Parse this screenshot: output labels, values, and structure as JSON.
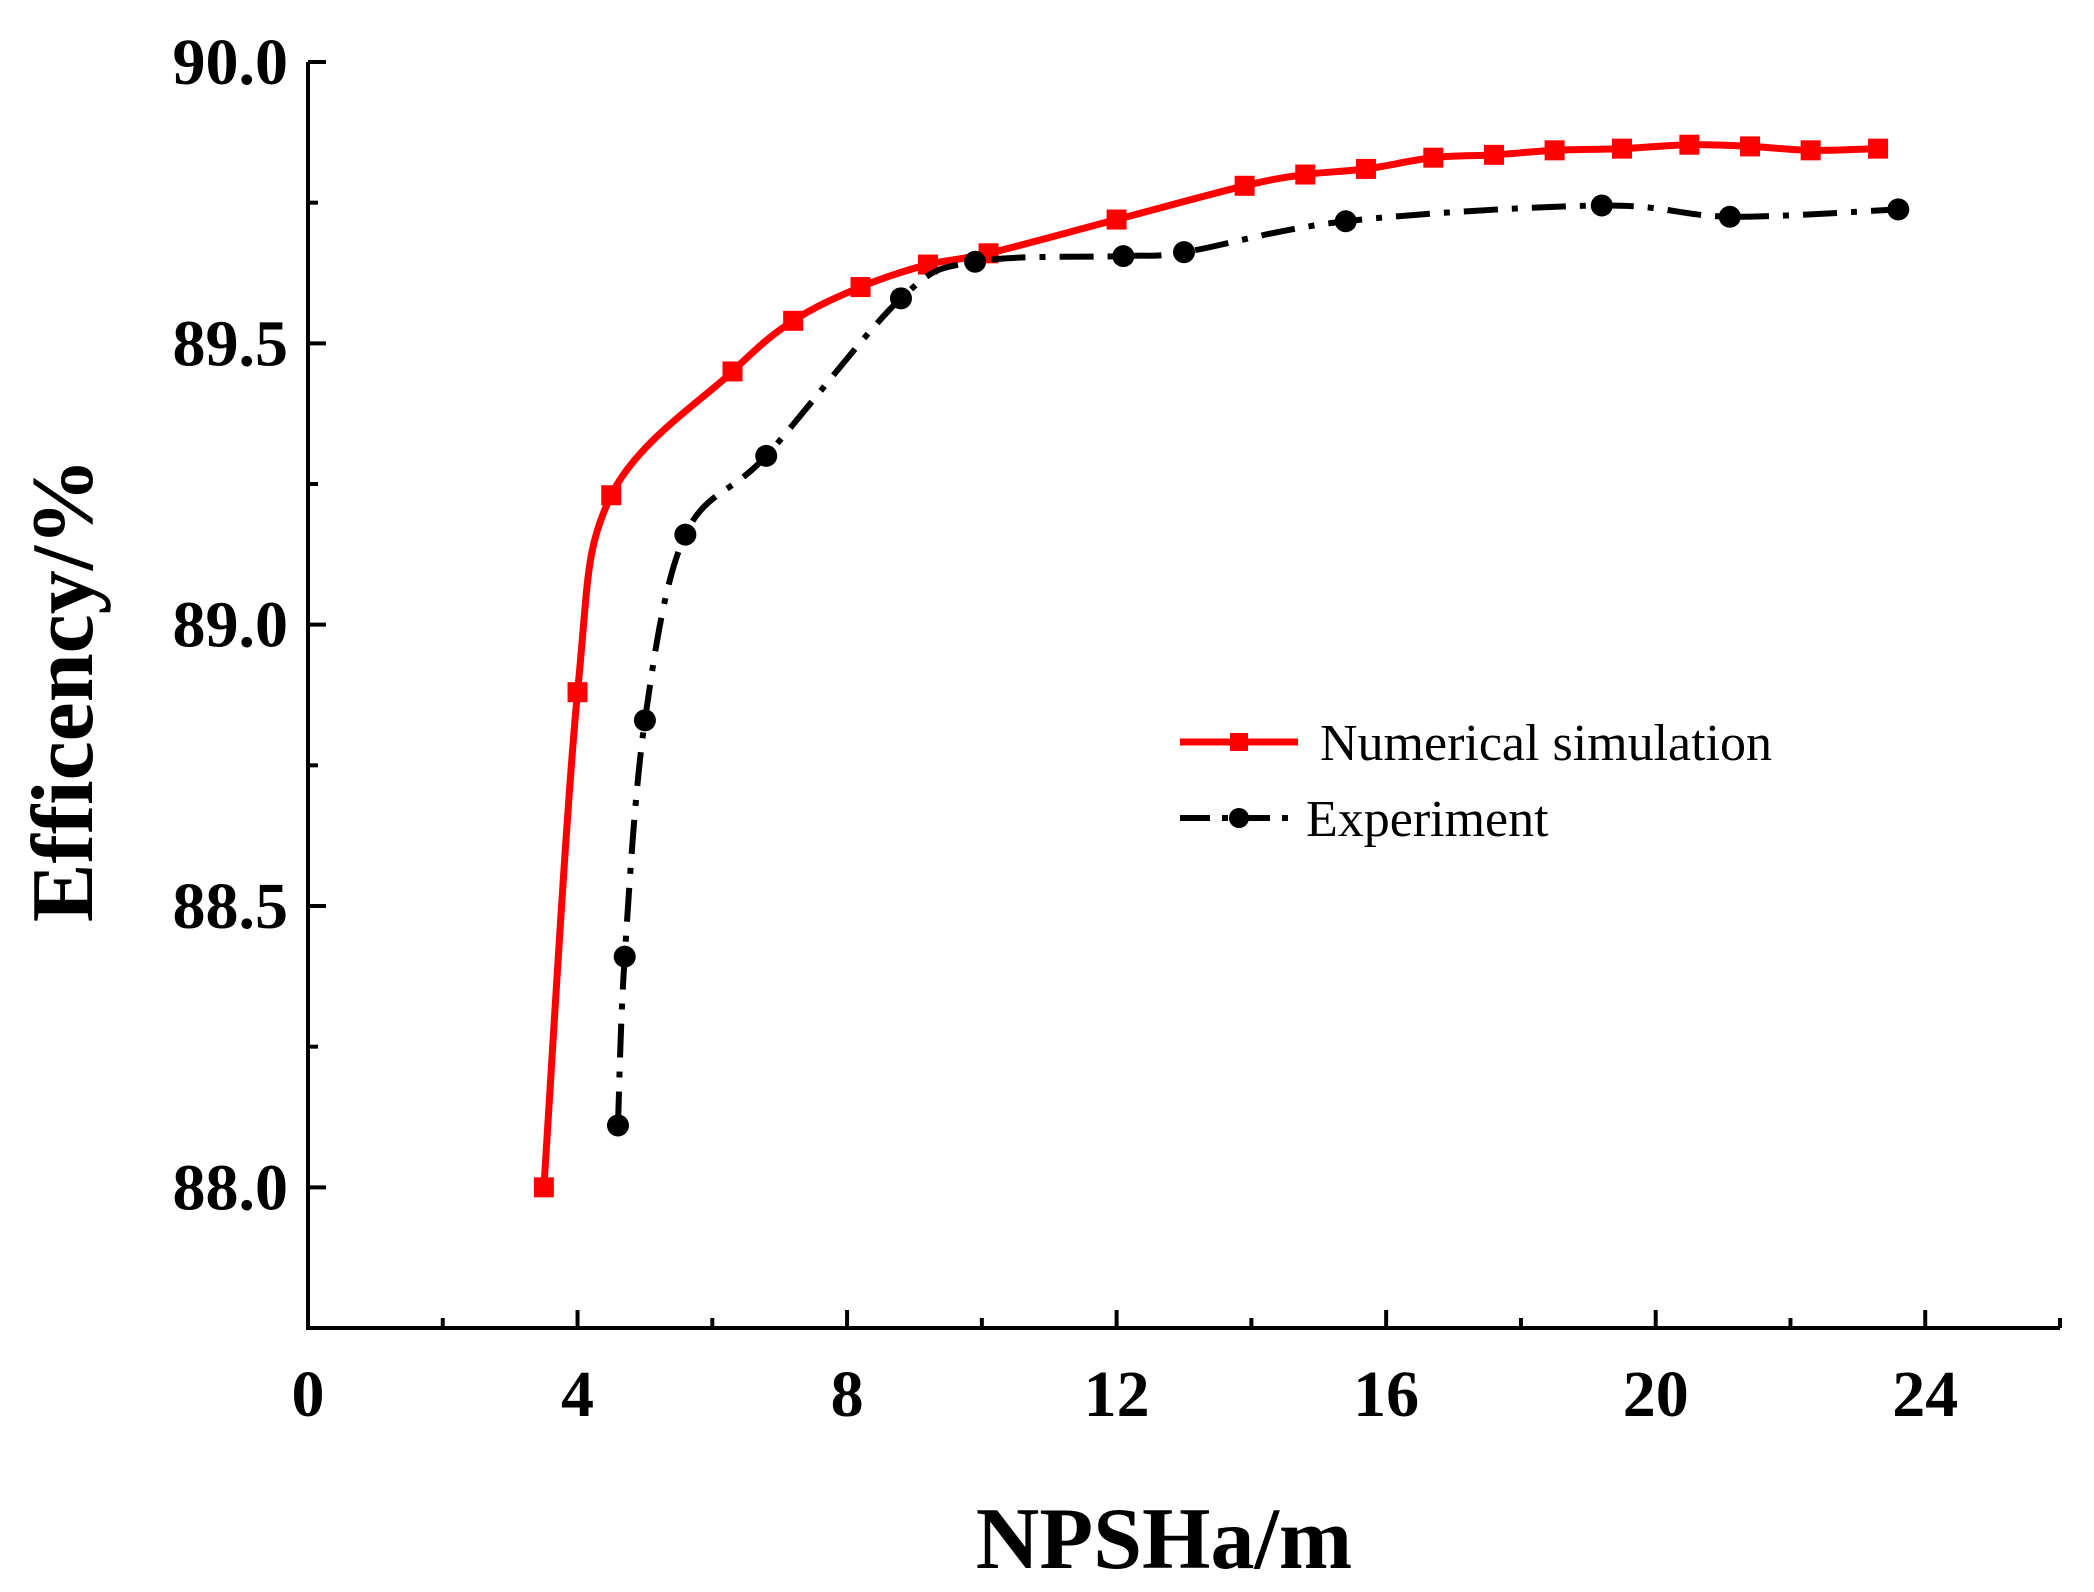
{
  "chart_data": {
    "type": "line",
    "title": "",
    "xlabel": "NPSHa/m",
    "ylabel": "Efficency/%",
    "xlim": [
      0,
      26
    ],
    "ylim": [
      87.75,
      90.0
    ],
    "x_ticks": [
      0,
      4,
      8,
      12,
      16,
      20,
      24
    ],
    "x_tick_labels": [
      "0",
      "4",
      "8",
      "12",
      "16",
      "20",
      "24"
    ],
    "y_ticks": [
      88.0,
      88.5,
      89.0,
      89.5,
      90.0
    ],
    "y_tick_labels": [
      "88.0",
      "88.5",
      "89.0",
      "89.5",
      "90.0"
    ],
    "grid": false,
    "legend_position": "center-right",
    "series": [
      {
        "name": "Numerical simulation",
        "color": "#ff0000",
        "line_style": "solid",
        "marker": "square",
        "x": [
          3.5,
          4.0,
          4.5,
          6.3,
          7.2,
          8.2,
          9.2,
          10.1,
          12.0,
          13.9,
          14.8,
          15.7,
          16.7,
          17.6,
          18.5,
          19.5,
          20.5,
          21.4,
          22.3,
          23.3
        ],
        "y": [
          88.0,
          88.88,
          89.23,
          89.45,
          89.54,
          89.6,
          89.64,
          89.66,
          89.72,
          89.78,
          89.8,
          89.81,
          89.83,
          89.835,
          89.843,
          89.846,
          89.853,
          89.85,
          89.843,
          89.846
        ]
      },
      {
        "name": "Experiment",
        "color": "#000000",
        "line_style": "dash-dot",
        "marker": "circle",
        "x": [
          4.6,
          4.7,
          5.0,
          5.6,
          6.8,
          8.8,
          9.9,
          12.1,
          13.0,
          15.4,
          19.2,
          21.1,
          23.6
        ],
        "y": [
          88.11,
          88.41,
          88.83,
          89.16,
          89.3,
          89.58,
          89.645,
          89.655,
          89.662,
          89.717,
          89.745,
          89.725,
          89.738
        ]
      }
    ]
  }
}
